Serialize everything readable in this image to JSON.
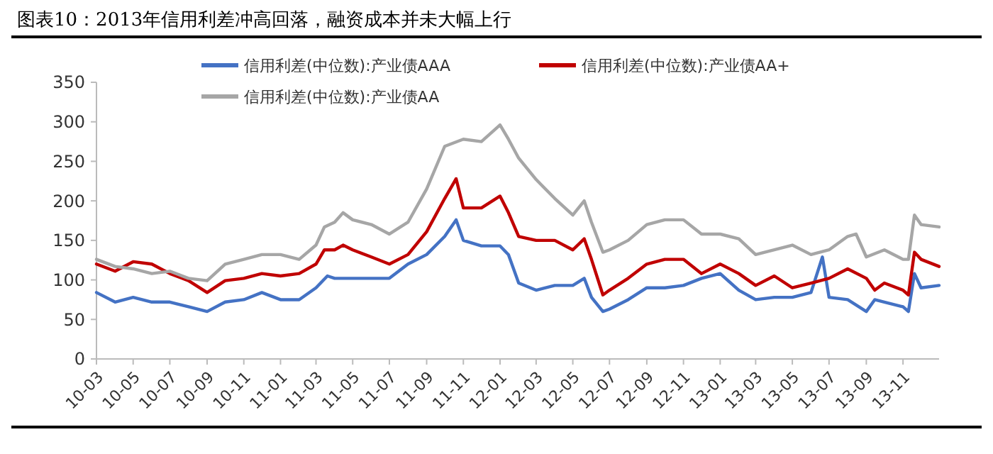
{
  "chart_data": {
    "type": "line",
    "title": "图表10：2013年信用利差冲高回落，融资成本并未大幅上行",
    "legend": "top",
    "grid": false,
    "xlim": [
      "2010-03-01",
      "2013-12-31"
    ],
    "xticks": [
      {
        "value": "2010-03",
        "label": "10-03"
      },
      {
        "value": "2010-05",
        "label": "10-05"
      },
      {
        "value": "2010-07",
        "label": "10-07"
      },
      {
        "value": "2010-09",
        "label": "10-09"
      },
      {
        "value": "2010-11",
        "label": "10-11"
      },
      {
        "value": "2011-01",
        "label": "11-01"
      },
      {
        "value": "2011-03",
        "label": "11-03"
      },
      {
        "value": "2011-05",
        "label": "11-05"
      },
      {
        "value": "2011-07",
        "label": "11-07"
      },
      {
        "value": "2011-09",
        "label": "11-09"
      },
      {
        "value": "2011-11",
        "label": "11-11"
      },
      {
        "value": "2012-01",
        "label": "12-01"
      },
      {
        "value": "2012-03",
        "label": "12-03"
      },
      {
        "value": "2012-05",
        "label": "12-05"
      },
      {
        "value": "2012-07",
        "label": "12-07"
      },
      {
        "value": "2012-09",
        "label": "12-09"
      },
      {
        "value": "2012-11",
        "label": "12-11"
      },
      {
        "value": "2013-01",
        "label": "13-01"
      },
      {
        "value": "2013-03",
        "label": "13-03"
      },
      {
        "value": "2013-05",
        "label": "13-05"
      },
      {
        "value": "2013-07",
        "label": "13-07"
      },
      {
        "value": "2013-09",
        "label": "13-09"
      },
      {
        "value": "2013-11",
        "label": "13-11"
      }
    ],
    "ylim": [
      0,
      350
    ],
    "yticks": [
      0,
      50,
      100,
      150,
      200,
      250,
      300,
      350
    ],
    "series": [
      {
        "name": "信用利差(中位数):产业债AAA",
        "color": "#4472c4",
        "x": [
          "2010-03-01",
          "2010-04-01",
          "2010-05-01",
          "2010-06-01",
          "2010-07-01",
          "2010-08-01",
          "2010-09-01",
          "2010-10-01",
          "2010-11-01",
          "2010-12-01",
          "2011-01-01",
          "2011-02-01",
          "2011-03-01",
          "2011-03-20",
          "2011-04-01",
          "2011-05-01",
          "2011-07-01",
          "2011-08-01",
          "2011-09-01",
          "2011-10-01",
          "2011-10-20",
          "2011-11-01",
          "2011-12-01",
          "2012-01-01",
          "2012-01-15",
          "2012-02-01",
          "2012-03-01",
          "2012-04-01",
          "2012-05-01",
          "2012-05-20",
          "2012-06-01",
          "2012-06-20",
          "2012-07-01",
          "2012-08-01",
          "2012-09-01",
          "2012-10-01",
          "2012-11-01",
          "2012-12-01",
          "2013-01-01",
          "2013-02-01",
          "2013-03-01",
          "2013-04-01",
          "2013-05-01",
          "2013-06-01",
          "2013-06-20",
          "2013-07-01",
          "2013-08-01",
          "2013-09-01",
          "2013-09-15",
          "2013-10-01",
          "2013-11-01",
          "2013-11-10",
          "2013-11-20",
          "2013-12-01",
          "2013-12-31"
        ],
        "values": [
          84,
          72,
          78,
          72,
          72,
          66,
          60,
          72,
          75,
          84,
          75,
          75,
          90,
          105,
          102,
          102,
          102,
          120,
          132,
          155,
          176,
          150,
          143,
          143,
          132,
          96,
          87,
          93,
          93,
          102,
          78,
          60,
          63,
          75,
          90,
          90,
          93,
          102,
          108,
          87,
          75,
          78,
          78,
          84,
          129,
          78,
          75,
          60,
          75,
          72,
          66,
          60,
          108,
          90,
          93
        ]
      },
      {
        "name": "信用利差(中位数):产业债AA+",
        "color": "#c00000",
        "x": [
          "2010-03-01",
          "2010-04-01",
          "2010-05-01",
          "2010-06-01",
          "2010-07-01",
          "2010-08-01",
          "2010-09-01",
          "2010-10-01",
          "2010-11-01",
          "2010-12-01",
          "2011-01-01",
          "2011-02-01",
          "2011-03-01",
          "2011-03-15",
          "2011-04-01",
          "2011-04-15",
          "2011-05-01",
          "2011-06-01",
          "2011-07-01",
          "2011-08-01",
          "2011-09-01",
          "2011-10-01",
          "2011-10-20",
          "2011-11-01",
          "2011-12-01",
          "2012-01-01",
          "2012-01-15",
          "2012-02-01",
          "2012-03-01",
          "2012-04-01",
          "2012-05-01",
          "2012-05-20",
          "2012-06-01",
          "2012-06-20",
          "2012-07-01",
          "2012-08-01",
          "2012-09-01",
          "2012-10-01",
          "2012-11-01",
          "2012-12-01",
          "2013-01-01",
          "2013-02-01",
          "2013-03-01",
          "2013-04-01",
          "2013-05-01",
          "2013-06-01",
          "2013-07-01",
          "2013-08-01",
          "2013-09-01",
          "2013-09-15",
          "2013-10-01",
          "2013-11-01",
          "2013-11-10",
          "2013-11-20",
          "2013-12-01",
          "2013-12-31"
        ],
        "values": [
          120,
          111,
          123,
          120,
          108,
          99,
          84,
          99,
          102,
          108,
          105,
          108,
          120,
          138,
          138,
          144,
          138,
          129,
          120,
          132,
          161,
          203,
          228,
          191,
          191,
          206,
          185,
          155,
          150,
          150,
          138,
          152,
          126,
          81,
          87,
          102,
          120,
          126,
          126,
          108,
          120,
          108,
          93,
          105,
          90,
          96,
          102,
          114,
          102,
          87,
          96,
          87,
          81,
          135,
          126,
          117
        ]
      },
      {
        "name": "信用利差(中位数):产业债AA",
        "color": "#a6a6a6",
        "x": [
          "2010-03-01",
          "2010-04-01",
          "2010-05-01",
          "2010-06-01",
          "2010-07-01",
          "2010-08-01",
          "2010-09-01",
          "2010-10-01",
          "2010-11-01",
          "2010-12-01",
          "2011-01-01",
          "2011-02-01",
          "2011-03-01",
          "2011-03-15",
          "2011-04-01",
          "2011-04-15",
          "2011-05-01",
          "2011-06-01",
          "2011-07-01",
          "2011-08-01",
          "2011-09-01",
          "2011-10-01",
          "2011-11-01",
          "2011-12-01",
          "2012-01-01",
          "2012-01-15",
          "2012-02-01",
          "2012-03-01",
          "2012-04-01",
          "2012-05-01",
          "2012-05-20",
          "2012-06-01",
          "2012-06-20",
          "2012-07-01",
          "2012-08-01",
          "2012-09-01",
          "2012-10-01",
          "2012-11-01",
          "2012-12-01",
          "2013-01-01",
          "2013-02-01",
          "2013-03-01",
          "2013-04-01",
          "2013-05-01",
          "2013-06-01",
          "2013-07-01",
          "2013-08-01",
          "2013-08-15",
          "2013-09-01",
          "2013-10-01",
          "2013-11-01",
          "2013-11-10",
          "2013-11-20",
          "2013-12-01",
          "2013-12-31"
        ],
        "values": [
          126,
          117,
          114,
          108,
          111,
          102,
          99,
          120,
          126,
          132,
          132,
          126,
          144,
          167,
          173,
          185,
          176,
          170,
          158,
          173,
          215,
          269,
          278,
          275,
          296,
          278,
          254,
          227,
          203,
          182,
          200,
          173,
          135,
          138,
          150,
          170,
          176,
          176,
          158,
          158,
          152,
          132,
          138,
          144,
          132,
          138,
          155,
          158,
          129,
          138,
          126,
          126,
          182,
          170,
          167
        ]
      }
    ]
  }
}
